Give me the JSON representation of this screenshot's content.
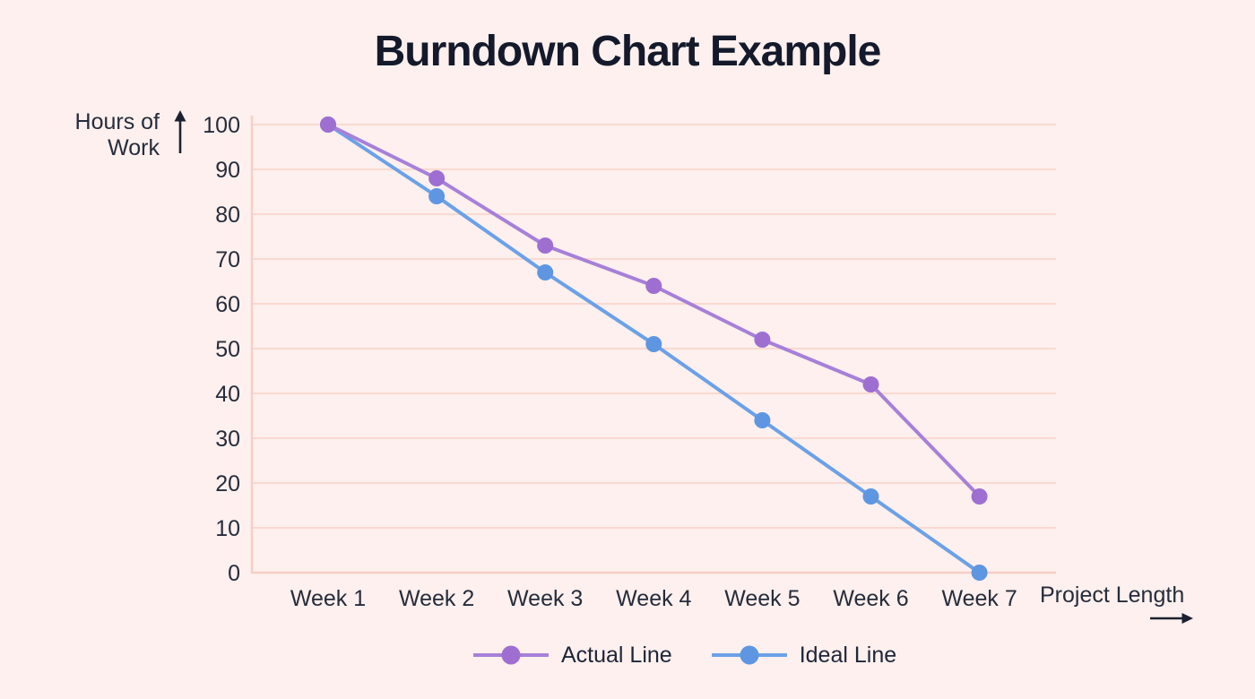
{
  "title": "Burndown Chart Example",
  "y_axis": {
    "title_line1": "Hours of",
    "title_line2": "Work"
  },
  "x_axis": {
    "title": "Project Length"
  },
  "chart_data": {
    "type": "line",
    "title": "Burndown Chart Example",
    "xlabel": "Project Length",
    "ylabel": "Hours of Work",
    "categories": [
      "Week 1",
      "Week 2",
      "Week 3",
      "Week 4",
      "Week 5",
      "Week 6",
      "Week 7"
    ],
    "y_ticks": [
      0,
      10,
      20,
      30,
      40,
      50,
      60,
      70,
      80,
      90,
      100
    ],
    "ylim": [
      0,
      100
    ],
    "grid": true,
    "legend_position": "bottom",
    "series": [
      {
        "name": "Actual Line",
        "line_color": "#a780d9",
        "marker_color": "#9e6fd1",
        "values": [
          100,
          88,
          73,
          64,
          52,
          42,
          17
        ]
      },
      {
        "name": "Ideal Line",
        "line_color": "#6ba1e7",
        "marker_color": "#5e96e2",
        "values": [
          100,
          84,
          67,
          51,
          34,
          17,
          0
        ]
      }
    ]
  },
  "legend": [
    {
      "label": "Actual Line",
      "line_color": "#a780d9",
      "marker_color": "#9e6fd1"
    },
    {
      "label": "Ideal Line",
      "line_color": "#6ba1e7",
      "marker_color": "#5e96e2"
    }
  ],
  "icons": {
    "y_axis_arrow": "up-arrow",
    "x_axis_arrow": "right-arrow"
  },
  "colors": {
    "background": "#fdf0ee",
    "gridline": "#fbd9d0",
    "axis": "#f8cdc3",
    "title_text": "#141a2b",
    "label_text": "#272c3b",
    "arrow": "#1c2130"
  }
}
